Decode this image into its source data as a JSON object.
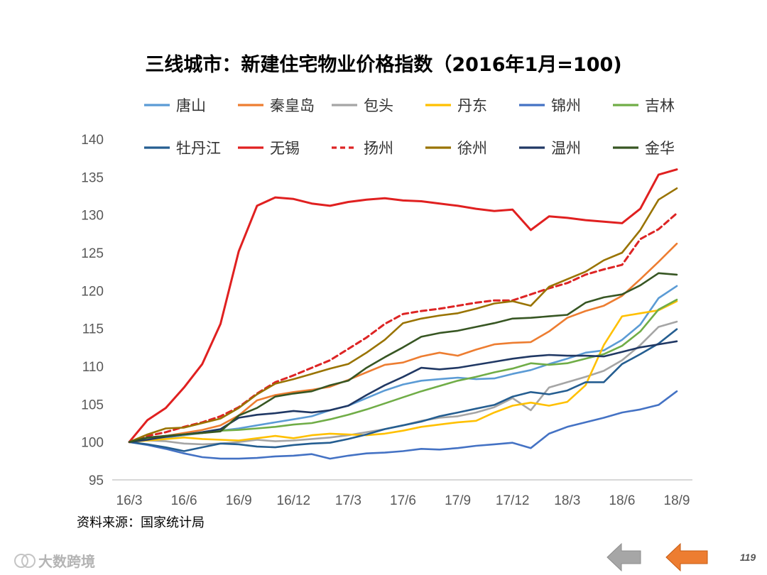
{
  "chart_data": {
    "type": "line",
    "title": "三线城市：新建住宅物业价格指数（2016年1月=100)",
    "xlabel": "",
    "ylabel": "",
    "ylim": [
      95,
      140
    ],
    "yticks": [
      95,
      100,
      105,
      110,
      115,
      120,
      125,
      130,
      135,
      140
    ],
    "x_labels": [
      "16/3",
      "16/6",
      "16/9",
      "16/12",
      "17/3",
      "17/6",
      "17/9",
      "17/12",
      "18/3",
      "18/6",
      "18/9"
    ],
    "months": [
      "16/3",
      "16/4",
      "16/5",
      "16/6",
      "16/7",
      "16/8",
      "16/9",
      "16/10",
      "16/11",
      "16/12",
      "17/1",
      "17/2",
      "17/3",
      "17/4",
      "17/5",
      "17/6",
      "17/7",
      "17/8",
      "17/9",
      "17/10",
      "17/11",
      "17/12",
      "18/1",
      "18/2",
      "18/3",
      "18/4",
      "18/5",
      "18/6",
      "18/7",
      "18/8",
      "18/9"
    ],
    "grid": false,
    "legend_position": "top",
    "series": [
      {
        "name": "唐山",
        "color": "#5b9bd5",
        "dash": false,
        "values": [
          100,
          100.3,
          100.6,
          100.9,
          101.2,
          101.5,
          101.8,
          102.2,
          102.6,
          103.0,
          103.4,
          104.2,
          104.8,
          105.8,
          106.8,
          107.6,
          108.1,
          108.3,
          108.5,
          108.3,
          108.4,
          109.0,
          109.5,
          110.3,
          111.0,
          111.8,
          112.1,
          113.5,
          115.5,
          119.0,
          120.6
        ]
      },
      {
        "name": "秦皇岛",
        "color": "#ed7d31",
        "dash": false,
        "values": [
          100,
          100.4,
          100.8,
          101.2,
          101.6,
          102.2,
          103.5,
          105.5,
          106.2,
          106.6,
          106.9,
          107.3,
          108.2,
          109.2,
          110.2,
          110.5,
          111.3,
          111.8,
          111.4,
          112.2,
          112.9,
          113.1,
          113.2,
          114.6,
          116.4,
          117.3,
          118.0,
          119.3,
          121.5,
          123.8,
          126.2
        ]
      },
      {
        "name": "包头",
        "color": "#a5a5a5",
        "dash": false,
        "values": [
          100,
          100.2,
          100.1,
          99.8,
          99.7,
          99.8,
          100.0,
          100.3,
          100.1,
          100.2,
          100.4,
          100.6,
          100.9,
          101.3,
          101.7,
          102.2,
          102.8,
          103.2,
          103.4,
          103.9,
          104.6,
          105.8,
          104.2,
          107.2,
          107.9,
          108.6,
          109.4,
          110.8,
          112.8,
          115.2,
          115.9
        ]
      },
      {
        "name": "丹东",
        "color": "#ffc000",
        "dash": false,
        "values": [
          100,
          100.2,
          100.4,
          100.6,
          100.4,
          100.3,
          100.2,
          100.5,
          100.8,
          100.5,
          100.9,
          101.1,
          101.0,
          100.9,
          101.1,
          101.5,
          102.0,
          102.3,
          102.6,
          102.8,
          103.9,
          104.8,
          105.2,
          104.8,
          105.3,
          107.5,
          112.8,
          116.6,
          117.0,
          117.4,
          118.6
        ]
      },
      {
        "name": "锦州",
        "color": "#4472c4",
        "dash": false,
        "values": [
          100,
          99.6,
          99.1,
          98.5,
          98.0,
          97.8,
          97.8,
          97.9,
          98.1,
          98.2,
          98.4,
          97.8,
          98.2,
          98.5,
          98.6,
          98.8,
          99.1,
          99.0,
          99.2,
          99.5,
          99.7,
          99.9,
          99.2,
          101.1,
          102.0,
          102.6,
          103.2,
          103.9,
          104.3,
          104.9,
          106.7
        ]
      },
      {
        "name": "吉林",
        "color": "#70ad47",
        "dash": false,
        "values": [
          100,
          100.5,
          100.8,
          101.0,
          101.2,
          101.5,
          101.6,
          101.8,
          102.0,
          102.3,
          102.5,
          103.0,
          103.6,
          104.3,
          105.1,
          105.9,
          106.7,
          107.4,
          108.1,
          108.6,
          109.2,
          109.7,
          110.4,
          110.2,
          110.4,
          111.0,
          111.6,
          112.7,
          114.6,
          117.5,
          118.8
        ]
      },
      {
        "name": "牡丹江",
        "color": "#255e91",
        "dash": false,
        "values": [
          100,
          99.7,
          99.3,
          98.8,
          99.3,
          99.8,
          99.7,
          99.4,
          99.3,
          99.6,
          99.8,
          99.9,
          100.4,
          101.0,
          101.7,
          102.2,
          102.7,
          103.4,
          103.9,
          104.4,
          104.9,
          106.0,
          106.6,
          106.3,
          106.8,
          107.9,
          107.9,
          110.3,
          111.6,
          113.0,
          114.9
        ]
      },
      {
        "name": "无锡",
        "color": "#e02020",
        "dash": false,
        "values": [
          100,
          102.9,
          104.5,
          107.2,
          110.3,
          115.6,
          125.2,
          131.2,
          132.3,
          132.1,
          131.5,
          131.2,
          131.7,
          132.0,
          132.2,
          131.9,
          131.8,
          131.5,
          131.2,
          130.8,
          130.5,
          130.7,
          128.0,
          129.8,
          129.6,
          129.3,
          129.1,
          128.9,
          130.8,
          135.3,
          136.0
        ]
      },
      {
        "name": "扬州",
        "color": "#dd2424",
        "dash": true,
        "values": [
          100,
          100.8,
          101.3,
          102.0,
          102.6,
          103.4,
          104.6,
          106.4,
          107.9,
          108.8,
          109.8,
          110.8,
          112.3,
          113.8,
          115.6,
          116.9,
          117.3,
          117.6,
          118.0,
          118.4,
          118.7,
          118.7,
          119.5,
          120.3,
          121.0,
          122.1,
          122.8,
          123.4,
          126.8,
          128.1,
          130.2
        ]
      },
      {
        "name": "徐州",
        "color": "#997300",
        "dash": false,
        "values": [
          100,
          101.0,
          101.8,
          101.9,
          102.5,
          103.1,
          104.5,
          106.3,
          107.7,
          108.3,
          109.0,
          109.7,
          110.3,
          111.8,
          113.5,
          115.7,
          116.3,
          116.7,
          117.0,
          117.6,
          118.3,
          118.6,
          118.0,
          120.5,
          121.5,
          122.5,
          124.0,
          125.0,
          128.0,
          132.0,
          133.5
        ]
      },
      {
        "name": "温州",
        "color": "#203864",
        "dash": false,
        "values": [
          100,
          100.3,
          100.7,
          101.0,
          101.3,
          101.7,
          103.2,
          103.6,
          103.8,
          104.1,
          103.9,
          104.2,
          104.8,
          106.2,
          107.5,
          108.6,
          109.8,
          109.6,
          109.8,
          110.2,
          110.6,
          111.0,
          111.3,
          111.5,
          111.4,
          111.4,
          111.3,
          111.9,
          112.5,
          112.9,
          113.3
        ]
      },
      {
        "name": "金华",
        "color": "#375623",
        "dash": false,
        "values": [
          100,
          100.6,
          100.8,
          101.0,
          101.2,
          101.4,
          103.5,
          104.5,
          106.0,
          106.4,
          106.7,
          107.5,
          108.1,
          109.8,
          111.2,
          112.5,
          113.9,
          114.4,
          114.7,
          115.2,
          115.7,
          116.3,
          116.4,
          116.6,
          116.8,
          118.4,
          119.1,
          119.5,
          120.7,
          122.3,
          122.1
        ]
      }
    ],
    "source": "资料来源：国家统计局"
  },
  "watermark": "大数跨境",
  "page_number": "119",
  "nav": {
    "prev_color": "#a6a6a6",
    "next_color": "#ed7d31"
  }
}
